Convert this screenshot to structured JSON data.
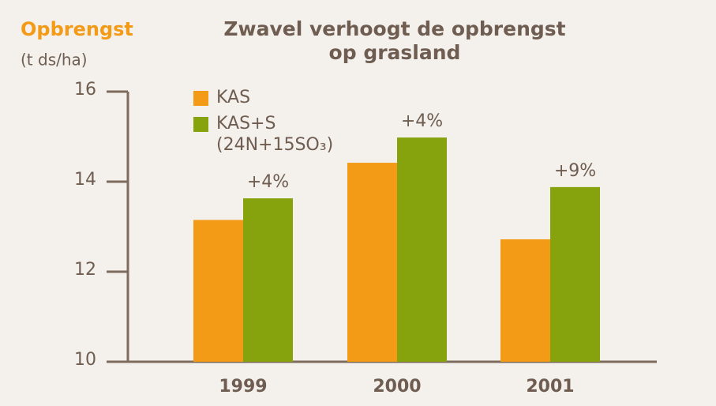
{
  "chart_data": {
    "type": "bar",
    "title": [
      "Zwavel verhoogt de opbrengst",
      "op grasland"
    ],
    "y_label": "Opbrengst",
    "y_unit": "(t ds/ha)",
    "categories": [
      "1999",
      "2000",
      "2001"
    ],
    "series": [
      {
        "name": "KAS",
        "color": "#f39a17",
        "values": [
          13.15,
          14.42,
          12.72
        ]
      },
      {
        "name": "KAS+S",
        "note": "(24N+15SO₃)",
        "color": "#86a20c",
        "values": [
          13.63,
          14.98,
          13.88
        ]
      }
    ],
    "annotations": [
      "+4%",
      "+4%",
      "+9%"
    ],
    "ylim": [
      10,
      16
    ],
    "yticks": [
      10,
      12,
      14,
      16
    ],
    "legend": "top-left"
  }
}
